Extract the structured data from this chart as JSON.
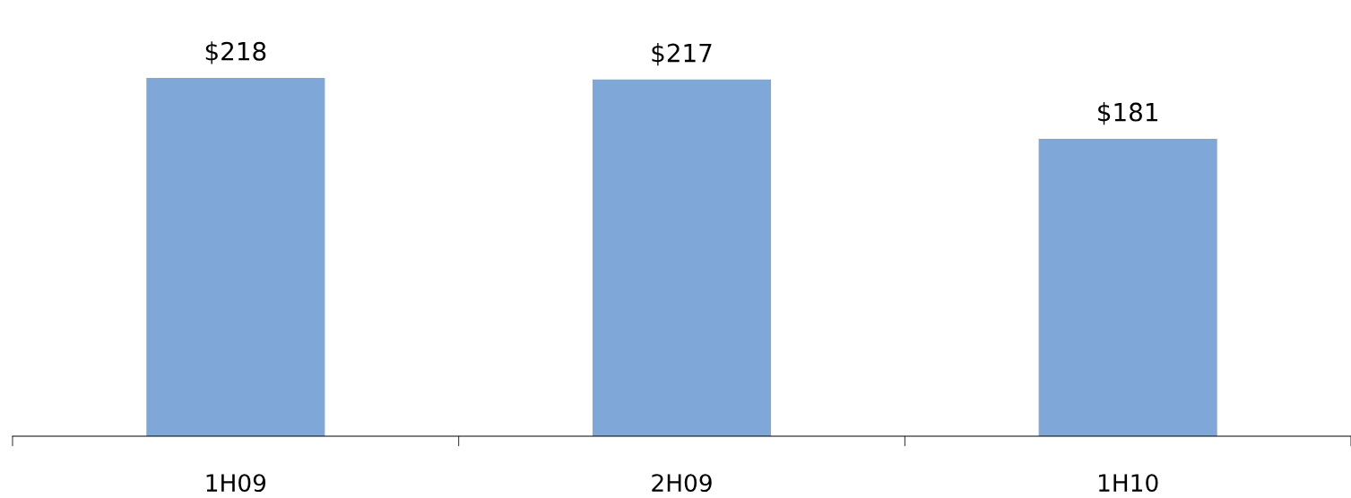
{
  "chart_data": {
    "type": "bar",
    "categories": [
      "1H09",
      "2H09",
      "1H10"
    ],
    "values": [
      218,
      217,
      181
    ],
    "value_labels": [
      "$218",
      "$217",
      "$181"
    ],
    "color": "#7fa8d8",
    "tick_labels": "x",
    "grid": false,
    "legend": false
  }
}
